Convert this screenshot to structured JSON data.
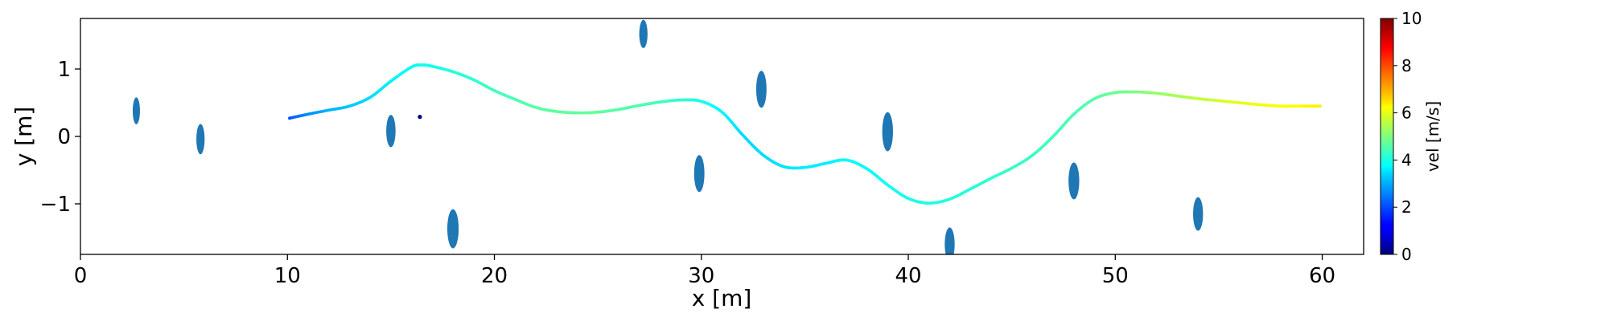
{
  "chart_data": {
    "type": "scatter",
    "xlabel": "x [m]",
    "ylabel": "y [m]",
    "xlim": [
      0,
      62
    ],
    "ylim": [
      -1.75,
      1.75
    ],
    "xticks": [
      0,
      10,
      20,
      30,
      40,
      50,
      60
    ],
    "yticks": [
      -1,
      0,
      1
    ],
    "ytick_labels": [
      "−1",
      "0",
      "1"
    ],
    "grid": false,
    "colorbar": {
      "label": "vel [m/s]",
      "range": [
        0,
        10
      ],
      "ticks": [
        0,
        2,
        4,
        6,
        8,
        10
      ],
      "colormap": "jet"
    },
    "trajectory": {
      "points": [
        {
          "x": 10.1,
          "y": 0.27,
          "v": 2.0
        },
        {
          "x": 11.0,
          "y": 0.33,
          "v": 2.6
        },
        {
          "x": 12.0,
          "y": 0.39,
          "v": 3.0
        },
        {
          "x": 13.0,
          "y": 0.45,
          "v": 3.2
        },
        {
          "x": 14.0,
          "y": 0.58,
          "v": 3.4
        },
        {
          "x": 15.0,
          "y": 0.82,
          "v": 3.6
        },
        {
          "x": 16.0,
          "y": 1.03,
          "v": 3.8
        },
        {
          "x": 16.5,
          "y": 1.06,
          "v": 3.9
        },
        {
          "x": 17.0,
          "y": 1.04,
          "v": 3.9
        },
        {
          "x": 18.0,
          "y": 0.96,
          "v": 4.1
        },
        {
          "x": 19.0,
          "y": 0.84,
          "v": 4.2
        },
        {
          "x": 20.0,
          "y": 0.68,
          "v": 4.4
        },
        {
          "x": 21.0,
          "y": 0.55,
          "v": 4.5
        },
        {
          "x": 22.0,
          "y": 0.43,
          "v": 4.6
        },
        {
          "x": 23.0,
          "y": 0.37,
          "v": 4.7
        },
        {
          "x": 24.0,
          "y": 0.35,
          "v": 4.7
        },
        {
          "x": 25.0,
          "y": 0.36,
          "v": 4.7
        },
        {
          "x": 26.0,
          "y": 0.4,
          "v": 4.6
        },
        {
          "x": 27.0,
          "y": 0.46,
          "v": 4.5
        },
        {
          "x": 28.0,
          "y": 0.51,
          "v": 4.4
        },
        {
          "x": 29.0,
          "y": 0.54,
          "v": 4.2
        },
        {
          "x": 30.0,
          "y": 0.52,
          "v": 4.0
        },
        {
          "x": 31.0,
          "y": 0.36,
          "v": 3.7
        },
        {
          "x": 32.0,
          "y": 0.02,
          "v": 3.4
        },
        {
          "x": 33.0,
          "y": -0.28,
          "v": 3.4
        },
        {
          "x": 34.0,
          "y": -0.45,
          "v": 3.5
        },
        {
          "x": 35.0,
          "y": -0.46,
          "v": 3.6
        },
        {
          "x": 36.0,
          "y": -0.4,
          "v": 3.6
        },
        {
          "x": 37.0,
          "y": -0.35,
          "v": 3.7
        },
        {
          "x": 38.0,
          "y": -0.48,
          "v": 3.8
        },
        {
          "x": 39.0,
          "y": -0.72,
          "v": 3.9
        },
        {
          "x": 40.0,
          "y": -0.92,
          "v": 4.0
        },
        {
          "x": 41.0,
          "y": -0.99,
          "v": 4.0
        },
        {
          "x": 42.0,
          "y": -0.93,
          "v": 4.1
        },
        {
          "x": 43.0,
          "y": -0.78,
          "v": 4.1
        },
        {
          "x": 44.0,
          "y": -0.62,
          "v": 4.2
        },
        {
          "x": 45.0,
          "y": -0.47,
          "v": 4.3
        },
        {
          "x": 46.0,
          "y": -0.28,
          "v": 4.3
        },
        {
          "x": 47.0,
          "y": 0.0,
          "v": 4.4
        },
        {
          "x": 48.0,
          "y": 0.33,
          "v": 4.5
        },
        {
          "x": 49.0,
          "y": 0.56,
          "v": 4.6
        },
        {
          "x": 50.0,
          "y": 0.65,
          "v": 4.8
        },
        {
          "x": 51.0,
          "y": 0.66,
          "v": 5.0
        },
        {
          "x": 52.0,
          "y": 0.64,
          "v": 5.2
        },
        {
          "x": 53.0,
          "y": 0.6,
          "v": 5.4
        },
        {
          "x": 54.0,
          "y": 0.56,
          "v": 5.6
        },
        {
          "x": 55.0,
          "y": 0.53,
          "v": 5.8
        },
        {
          "x": 56.0,
          "y": 0.5,
          "v": 6.0
        },
        {
          "x": 57.0,
          "y": 0.47,
          "v": 6.1
        },
        {
          "x": 58.0,
          "y": 0.45,
          "v": 6.2
        },
        {
          "x": 59.0,
          "y": 0.45,
          "v": 6.3
        },
        {
          "x": 59.9,
          "y": 0.45,
          "v": 6.4
        }
      ]
    },
    "obstacles": [
      {
        "x": 2.7,
        "y": 0.38,
        "w": 0.35,
        "h": 0.4
      },
      {
        "x": 5.8,
        "y": -0.04,
        "w": 0.4,
        "h": 0.45
      },
      {
        "x": 15.0,
        "y": 0.08,
        "w": 0.45,
        "h": 0.48
      },
      {
        "x": 18.0,
        "y": -1.37,
        "w": 0.55,
        "h": 0.58
      },
      {
        "x": 27.2,
        "y": 1.52,
        "w": 0.4,
        "h": 0.42
      },
      {
        "x": 29.9,
        "y": -0.55,
        "w": 0.5,
        "h": 0.55
      },
      {
        "x": 32.9,
        "y": 0.7,
        "w": 0.5,
        "h": 0.55
      },
      {
        "x": 39.0,
        "y": 0.07,
        "w": 0.52,
        "h": 0.58
      },
      {
        "x": 42.0,
        "y": -1.6,
        "w": 0.48,
        "h": 0.5
      },
      {
        "x": 48.0,
        "y": -0.66,
        "w": 0.52,
        "h": 0.55
      },
      {
        "x": 54.0,
        "y": -1.15,
        "w": 0.48,
        "h": 0.5
      }
    ],
    "marker": {
      "x": 16.4,
      "y": 0.29
    },
    "obstacle_color": "#1f77b4",
    "marker_color": "#00008b"
  }
}
